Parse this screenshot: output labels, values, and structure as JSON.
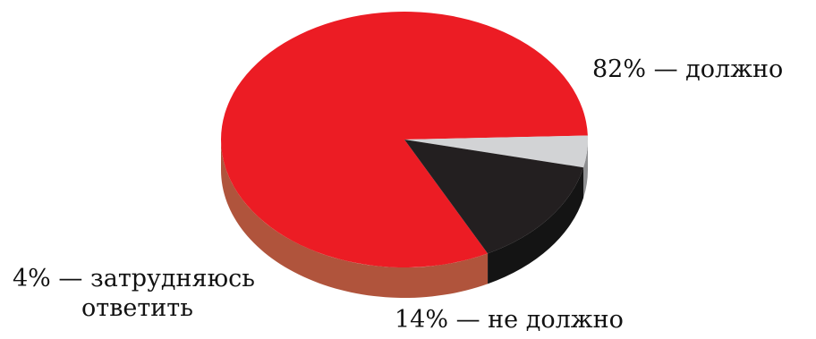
{
  "chart_data": {
    "type": "pie",
    "style": "3d",
    "title": "",
    "slices": [
      {
        "label": "82% — должно",
        "value": 82,
        "color": "#ec1c24",
        "side_color": "#b0543c"
      },
      {
        "label": "14% — не должно",
        "value": 14,
        "color": "#231f20",
        "side_color": "#141414"
      },
      {
        "label": "4% — затрудняюсь ответить",
        "label_lines": [
          "4% — затрудняюсь",
          "ответить"
        ],
        "value": 4,
        "color": "#d2d3d5",
        "side_color": "#8e8f91"
      }
    ]
  }
}
